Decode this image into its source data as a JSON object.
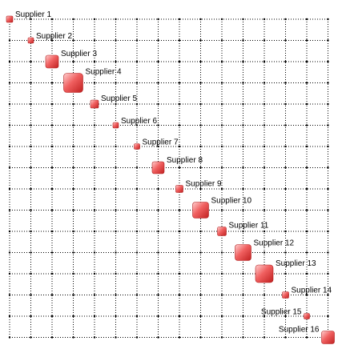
{
  "nodes": [
    {
      "label": "Supplier 1"
    },
    {
      "label": "Supplier 2"
    },
    {
      "label": "Supplier 3"
    },
    {
      "label": "Supplier 4"
    },
    {
      "label": "Supplier 5"
    },
    {
      "label": "Supplier 6"
    },
    {
      "label": "Supplier 7"
    },
    {
      "label": "Supplier 8"
    },
    {
      "label": "Supplier 9"
    },
    {
      "label": "Supplier 10"
    },
    {
      "label": "Supplier 11"
    },
    {
      "label": "Supplier 12"
    },
    {
      "label": "Supplier 13"
    },
    {
      "label": "Supplier 14"
    },
    {
      "label": "Supplier 15"
    },
    {
      "label": "Supplier 16"
    }
  ]
}
